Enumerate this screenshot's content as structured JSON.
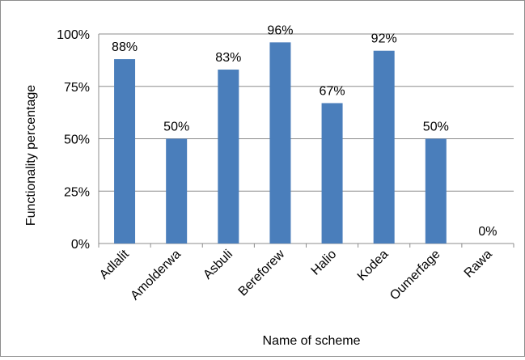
{
  "chart_data": {
    "type": "bar",
    "categories": [
      "Adlalit",
      "Amolderwa",
      "Asbuli",
      "Bereforew",
      "Halio",
      "Kodea",
      "Oumerfage",
      "Rawa"
    ],
    "values": [
      88,
      50,
      83,
      96,
      67,
      92,
      50,
      0
    ],
    "value_labels": [
      "88%",
      "50%",
      "83%",
      "96%",
      "67%",
      "92%",
      "50%",
      "0%"
    ],
    "xlabel": "Name of scheme",
    "ylabel": "Functionality percentage",
    "ylim": [
      0,
      100
    ],
    "y_ticks": [
      {
        "value": 0,
        "label": "0%"
      },
      {
        "value": 25,
        "label": "25%"
      },
      {
        "value": 50,
        "label": "50%"
      },
      {
        "value": 75,
        "label": "75%"
      },
      {
        "value": 100,
        "label": "100%"
      }
    ],
    "grid": true,
    "legend": "none",
    "bar_color": "#4a7ebb",
    "grid_color": "#8c8c8c"
  }
}
